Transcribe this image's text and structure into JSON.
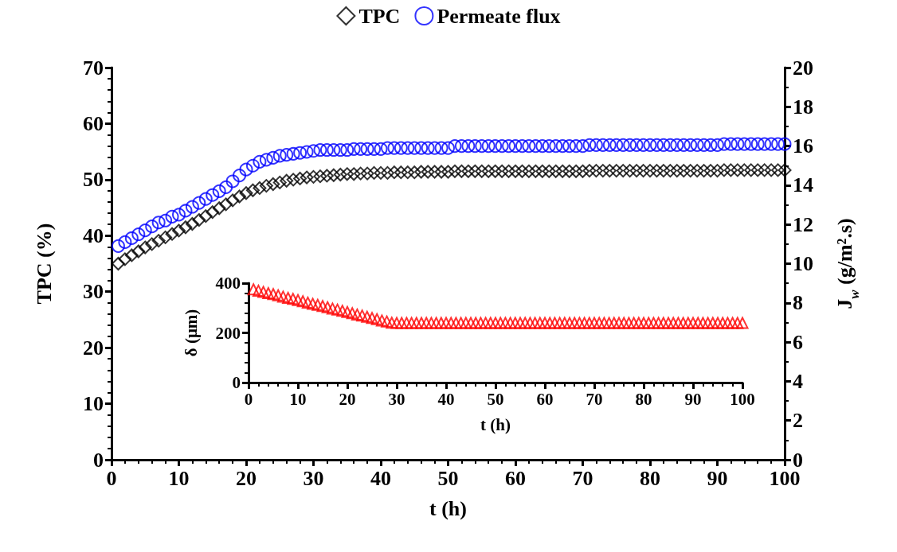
{
  "chart_data": [
    {
      "type": "scatter",
      "xlabel": "t (h)",
      "ylabel": "TPC (%)",
      "y2label": "J$_{w}$ (g/m².s)",
      "xlim": [
        0,
        100
      ],
      "xticks": [
        0,
        10,
        20,
        30,
        40,
        50,
        60,
        70,
        80,
        90,
        100
      ],
      "ylim": [
        0,
        70
      ],
      "yticks": [
        0,
        10,
        20,
        30,
        40,
        50,
        60,
        70
      ],
      "y2lim": [
        0,
        20
      ],
      "y2ticks": [
        0,
        2,
        4,
        6,
        8,
        10,
        12,
        14,
        16,
        18,
        20
      ],
      "grid": false,
      "legend": "top",
      "x": [
        1,
        2,
        3,
        4,
        5,
        6,
        7,
        8,
        9,
        10,
        11,
        12,
        13,
        14,
        15,
        16,
        17,
        18,
        19,
        20,
        21,
        22,
        23,
        24,
        25,
        26,
        27,
        28,
        29,
        30,
        31,
        32,
        33,
        34,
        35,
        36,
        37,
        38,
        39,
        40,
        41,
        42,
        43,
        44,
        45,
        46,
        47,
        48,
        49,
        50,
        51,
        52,
        53,
        54,
        55,
        56,
        57,
        58,
        59,
        60,
        61,
        62,
        63,
        64,
        65,
        66,
        67,
        68,
        69,
        70,
        71,
        72,
        73,
        74,
        75,
        76,
        77,
        78,
        79,
        80,
        81,
        82,
        83,
        84,
        85,
        86,
        87,
        88,
        89,
        90,
        91,
        92,
        93,
        94,
        95,
        96,
        97,
        98,
        99,
        100
      ],
      "series": [
        {
          "name": "TPC",
          "color": "#000000",
          "marker": "diamond",
          "values": [
            35,
            35.8,
            36.5,
            37.2,
            37.9,
            38.5,
            39.1,
            39.7,
            40.3,
            40.9,
            41.5,
            42.1,
            42.8,
            43.5,
            44.2,
            44.9,
            45.6,
            46.3,
            47,
            47.6,
            48.1,
            48.5,
            48.9,
            49.2,
            49.5,
            49.8,
            50,
            50.2,
            50.4,
            50.5,
            50.6,
            50.7,
            50.8,
            50.9,
            51,
            51,
            51.1,
            51.1,
            51.2,
            51.2,
            51.2,
            51.3,
            51.3,
            51.3,
            51.3,
            51.4,
            51.4,
            51.4,
            51.4,
            51.4,
            51.5,
            51.5,
            51.5,
            51.5,
            51.5,
            51.5,
            51.5,
            51.5,
            51.5,
            51.5,
            51.5,
            51.5,
            51.5,
            51.5,
            51.5,
            51.5,
            51.5,
            51.5,
            51.5,
            51.5,
            51.6,
            51.6,
            51.6,
            51.6,
            51.6,
            51.6,
            51.6,
            51.6,
            51.6,
            51.6,
            51.6,
            51.6,
            51.6,
            51.6,
            51.6,
            51.6,
            51.6,
            51.6,
            51.6,
            51.6,
            51.7,
            51.7,
            51.7,
            51.7,
            51.7,
            51.7,
            51.7,
            51.7,
            51.7,
            51.7
          ]
        },
        {
          "name": "Permeate flux",
          "color": "#0000ff",
          "marker": "circle",
          "axis": "y2",
          "values": [
            10.9,
            11.1,
            11.3,
            11.5,
            11.7,
            11.9,
            12.1,
            12.2,
            12.4,
            12.5,
            12.7,
            12.9,
            13.1,
            13.3,
            13.5,
            13.7,
            13.9,
            14.2,
            14.5,
            14.8,
            15,
            15.2,
            15.3,
            15.4,
            15.5,
            15.55,
            15.6,
            15.65,
            15.7,
            15.75,
            15.8,
            15.8,
            15.8,
            15.8,
            15.8,
            15.85,
            15.85,
            15.85,
            15.85,
            15.85,
            15.9,
            15.9,
            15.9,
            15.9,
            15.9,
            15.9,
            15.9,
            15.9,
            15.9,
            15.9,
            16,
            16,
            16,
            16,
            16,
            16,
            16,
            16,
            16,
            16,
            16,
            16,
            16,
            16,
            16,
            16,
            16,
            16,
            16,
            16,
            16.05,
            16.05,
            16.05,
            16.05,
            16.05,
            16.05,
            16.05,
            16.05,
            16.05,
            16.05,
            16.05,
            16.05,
            16.05,
            16.05,
            16.05,
            16.05,
            16.05,
            16.05,
            16.05,
            16.05,
            16.1,
            16.1,
            16.1,
            16.1,
            16.1,
            16.1,
            16.1,
            16.1,
            16.1,
            16.1
          ]
        }
      ]
    },
    {
      "type": "scatter",
      "xlabel": "t (h)",
      "ylabel": "δ (μm)",
      "xlim": [
        0,
        100
      ],
      "xticks": [
        0,
        10,
        20,
        30,
        40,
        50,
        60,
        70,
        80,
        90,
        100
      ],
      "ylim": [
        0,
        400
      ],
      "yticks": [
        0,
        200,
        400
      ],
      "grid": false,
      "legend": false,
      "x": [
        1,
        2,
        3,
        4,
        5,
        6,
        7,
        8,
        9,
        10,
        11,
        12,
        13,
        14,
        15,
        16,
        17,
        18,
        19,
        20,
        21,
        22,
        23,
        24,
        25,
        26,
        27,
        28,
        29,
        30,
        31,
        32,
        33,
        34,
        35,
        36,
        37,
        38,
        39,
        40,
        41,
        42,
        43,
        44,
        45,
        46,
        47,
        48,
        49,
        50,
        51,
        52,
        53,
        54,
        55,
        56,
        57,
        58,
        59,
        60,
        61,
        62,
        63,
        64,
        65,
        66,
        67,
        68,
        69,
        70,
        71,
        72,
        73,
        74,
        75,
        76,
        77,
        78,
        79,
        80,
        81,
        82,
        83,
        84,
        85,
        86,
        87,
        88,
        89,
        90,
        91,
        92,
        93,
        94,
        95,
        96,
        97,
        98,
        99,
        100
      ],
      "series": [
        {
          "color": "#ff0000",
          "marker": "triangle",
          "values": [
            375,
            370,
            365,
            360,
            356,
            351,
            346,
            341,
            337,
            332,
            327,
            322,
            317,
            313,
            308,
            303,
            298,
            294,
            289,
            284,
            279,
            274,
            270,
            265,
            260,
            255,
            250,
            246,
            241,
            240,
            240,
            240,
            240,
            240,
            240,
            240,
            240,
            240,
            240,
            240,
            240,
            240,
            240,
            240,
            240,
            240,
            240,
            240,
            240,
            240,
            240,
            240,
            240,
            240,
            240,
            240,
            240,
            240,
            240,
            240,
            240,
            240,
            240,
            240,
            240,
            240,
            240,
            240,
            240,
            240,
            240,
            240,
            240,
            240,
            240,
            240,
            240,
            240,
            240,
            240,
            240,
            240,
            240,
            240,
            240,
            240,
            240,
            240,
            240,
            240,
            240,
            240,
            240,
            240,
            240,
            240,
            240,
            240,
            240,
            240
          ]
        }
      ]
    }
  ]
}
